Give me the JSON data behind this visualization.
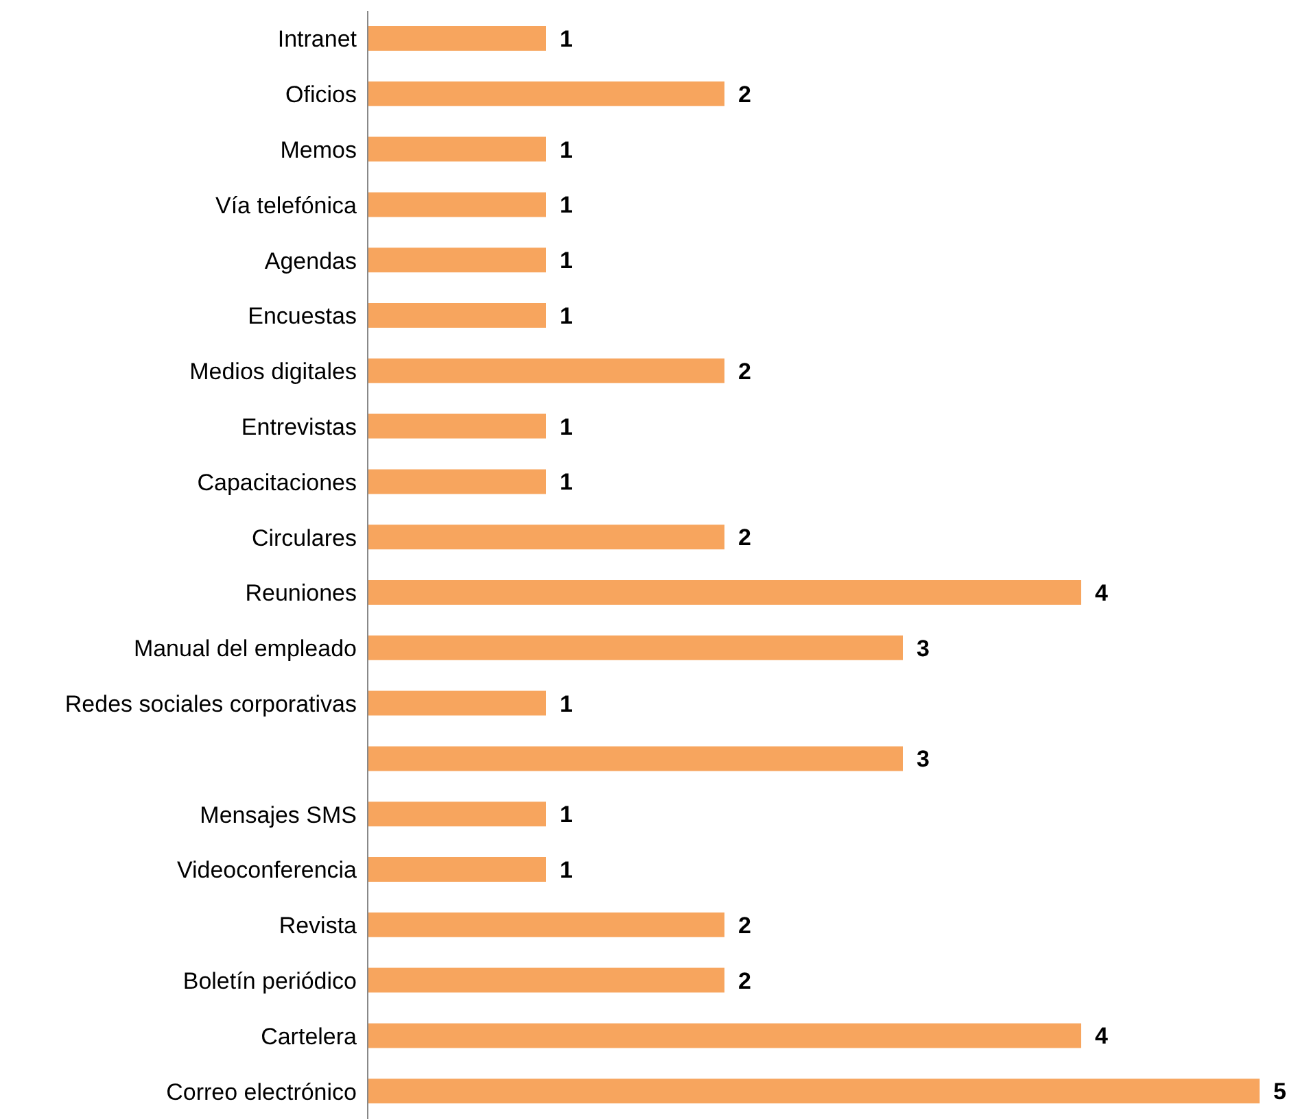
{
  "chart_data": {
    "type": "bar",
    "orientation": "horizontal",
    "categories": [
      "Intranet",
      "Oficios",
      "Memos",
      "Vía telefónica",
      "Agendas",
      "Encuestas",
      "Medios digitales",
      "Entrevistas",
      "Capacitaciones",
      "Circulares",
      "Reuniones",
      "Manual del empleado",
      "Redes sociales corporativas",
      null,
      "Mensajes SMS",
      "Videoconferencia",
      "Revista",
      "Boletín periódico",
      "Cartelera",
      "Correo electrónico"
    ],
    "values": [
      1,
      2,
      1,
      1,
      1,
      1,
      2,
      1,
      1,
      2,
      4,
      3,
      1,
      3,
      1,
      1,
      2,
      2,
      4,
      5
    ],
    "color": "#f7a55e",
    "data_labels": true,
    "tick_labels": "y"
  }
}
